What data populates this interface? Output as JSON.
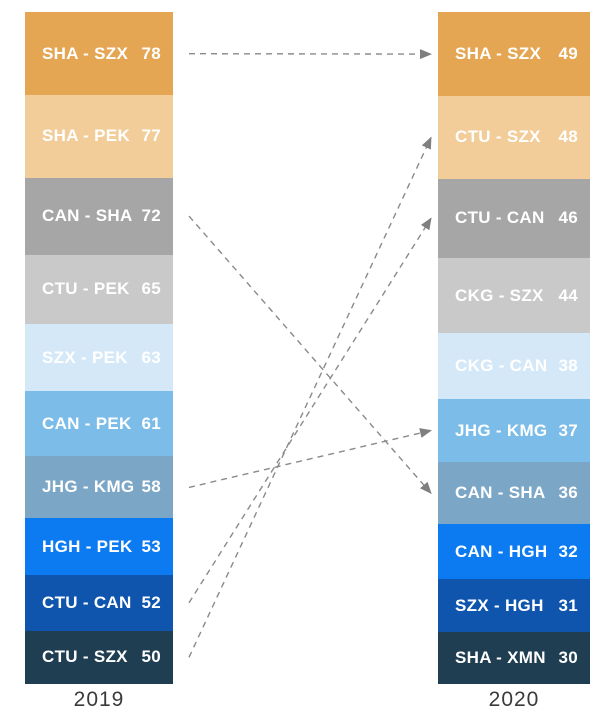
{
  "chart_data": {
    "type": "bar",
    "subtype": "paired-ranked-stacked-columns-with-rank-change-arrows",
    "title": "",
    "legend_position": "none",
    "grid": false,
    "columns": [
      {
        "year": "2019",
        "items": [
          {
            "route": "SHA - SZX",
            "value": 78
          },
          {
            "route": "SHA - PEK",
            "value": 77
          },
          {
            "route": "CAN - SHA",
            "value": 72
          },
          {
            "route": "CTU - PEK",
            "value": 65
          },
          {
            "route": "SZX - PEK",
            "value": 63
          },
          {
            "route": "CAN - PEK",
            "value": 61
          },
          {
            "route": "JHG - KMG",
            "value": 58
          },
          {
            "route": "HGH - PEK",
            "value": 53
          },
          {
            "route": "CTU - CAN",
            "value": 52
          },
          {
            "route": "CTU - SZX",
            "value": 50
          }
        ]
      },
      {
        "year": "2020",
        "items": [
          {
            "route": "SHA - SZX",
            "value": 49
          },
          {
            "route": "CTU - SZX",
            "value": 48
          },
          {
            "route": "CTU - CAN",
            "value": 46
          },
          {
            "route": "CKG - SZX",
            "value": 44
          },
          {
            "route": "CKG - CAN",
            "value": 38
          },
          {
            "route": "JHG - KMG",
            "value": 37
          },
          {
            "route": "CAN - SHA",
            "value": 36
          },
          {
            "route": "CAN - HGH",
            "value": 32
          },
          {
            "route": "SZX - HGH",
            "value": 31
          },
          {
            "route": "SHA - XMN",
            "value": 30
          }
        ]
      }
    ],
    "connections": [
      {
        "route": "SHA - SZX",
        "from_index": 0,
        "to_index": 0
      },
      {
        "route": "CAN - SHA",
        "from_index": 2,
        "to_index": 6
      },
      {
        "route": "JHG - KMG",
        "from_index": 6,
        "to_index": 5
      },
      {
        "route": "CTU - CAN",
        "from_index": 8,
        "to_index": 2
      },
      {
        "route": "CTU - SZX",
        "from_index": 9,
        "to_index": 1
      }
    ],
    "palette": [
      "#E4A652",
      "#F2CD99",
      "#A6A6A6",
      "#C9C9C9",
      "#D4E8F8",
      "#7CBCE9",
      "#7BA6C6",
      "#0C7BF2",
      "#0F55AD",
      "#1F3E52"
    ],
    "block_text_color": "#FFFFFF",
    "arrow_color": "#8A8A8A",
    "axis_label_color": "#3A3A3A"
  }
}
